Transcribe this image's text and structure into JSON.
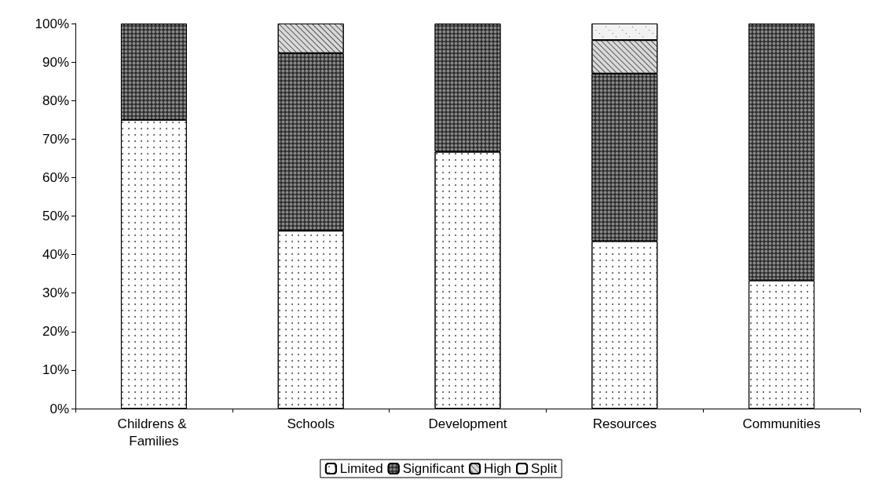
{
  "chart_data": {
    "type": "bar",
    "stacked": true,
    "categories": [
      "Childrens & Families",
      "Schools",
      "Development",
      "Resources",
      "Communities"
    ],
    "series": [
      {
        "name": "Limited",
        "color": "#ffffff",
        "values": [
          75,
          46.2,
          66.7,
          43.5,
          33.3
        ]
      },
      {
        "name": "Significant",
        "color": "#2b2b2b",
        "values": [
          25,
          46.1,
          33.3,
          43.5,
          66.7
        ]
      },
      {
        "name": "High",
        "color": "#d9d9d9",
        "values": [
          0,
          7.7,
          0,
          8.7,
          0
        ]
      },
      {
        "name": "Split",
        "color": "#f2f2f2",
        "values": [
          0,
          0,
          0,
          4.3,
          0
        ]
      }
    ],
    "ylim": [
      0,
      100
    ],
    "yticks": [
      {
        "value": 0,
        "label": "0%"
      },
      {
        "value": 10,
        "label": "10%"
      },
      {
        "value": 20,
        "label": "20%"
      },
      {
        "value": 30,
        "label": "30%"
      },
      {
        "value": 40,
        "label": "40%"
      },
      {
        "value": 50,
        "label": "50%"
      },
      {
        "value": 60,
        "label": "60%"
      },
      {
        "value": 70,
        "label": "70%"
      },
      {
        "value": 80,
        "label": "80%"
      },
      {
        "value": 90,
        "label": "90%"
      },
      {
        "value": 100,
        "label": "100%"
      }
    ],
    "grid": false,
    "legend": "bottom"
  }
}
